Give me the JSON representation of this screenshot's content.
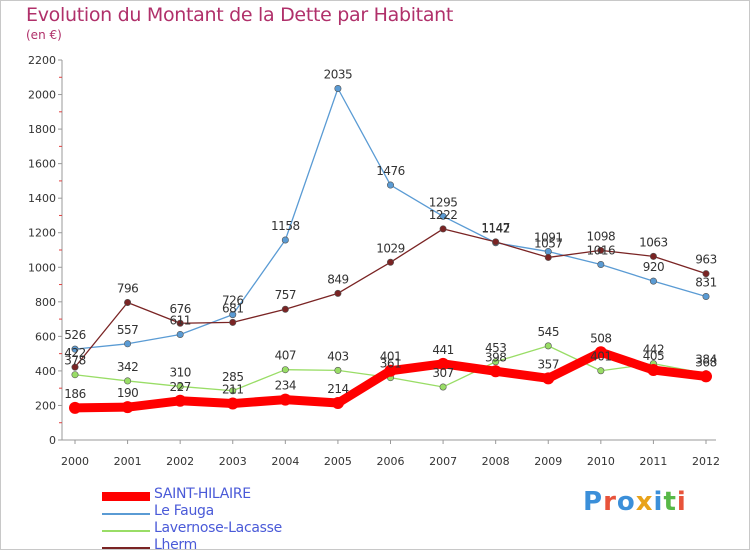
{
  "chart_data": {
    "type": "line",
    "title": "Evolution du Montant de la Dette par Habitant",
    "subtitle": "(en €)",
    "x": [
      "2000",
      "2001",
      "2002",
      "2003",
      "2004",
      "2005",
      "2006",
      "2007",
      "2008",
      "2009",
      "2010",
      "2011",
      "2012"
    ],
    "ylim": [
      0,
      2200
    ],
    "yticks": [
      0,
      200,
      400,
      600,
      800,
      1000,
      1200,
      1400,
      1600,
      1800,
      2000,
      2200
    ],
    "grid": false,
    "legend_position": "bottom-left",
    "series": [
      {
        "name": "SAINT-HILAIRE",
        "color": "#ff0000",
        "values": [
          186,
          190,
          227,
          211,
          234,
          214,
          401,
          441,
          398,
          357,
          508,
          405,
          368
        ]
      },
      {
        "name": "Le Fauga",
        "color": "#5a9bd4",
        "values": [
          526,
          557,
          611,
          726,
          1158,
          2035,
          1476,
          1295,
          1142,
          1091,
          1016,
          920,
          831
        ]
      },
      {
        "name": "Lavernose-Lacasse",
        "color": "#99dd66",
        "values": [
          378,
          342,
          310,
          285,
          407,
          403,
          361,
          307,
          453,
          545,
          401,
          442,
          384
        ]
      },
      {
        "name": "Lherm",
        "color": "#7a2424",
        "values": [
          422,
          796,
          676,
          681,
          757,
          849,
          1029,
          1222,
          1147,
          1057,
          1098,
          1063,
          963
        ]
      }
    ]
  },
  "logo_text": "Proxiti",
  "logo_colors": [
    "#3b8fd9",
    "#e8533a",
    "#3b8fd9",
    "#e8a21a",
    "#3b8fd9",
    "#58b848",
    "#e8533a"
  ]
}
